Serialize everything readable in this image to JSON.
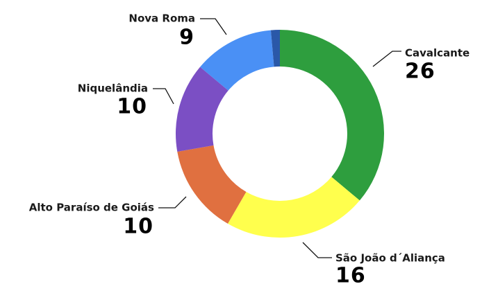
{
  "chart_data": {
    "type": "donut",
    "categories": [
      "Cavalcante",
      "São João d´Aliança",
      "Alto Paraíso de Goiás",
      "Niquelândia",
      "Nova Roma",
      null
    ],
    "values": [
      26,
      16,
      10,
      10,
      9,
      1
    ],
    "colors": [
      "#2e9e3e",
      "#ffff4d",
      "#e07040",
      "#7b4fc4",
      "#4a90f5",
      "#2a58a8"
    ]
  }
}
